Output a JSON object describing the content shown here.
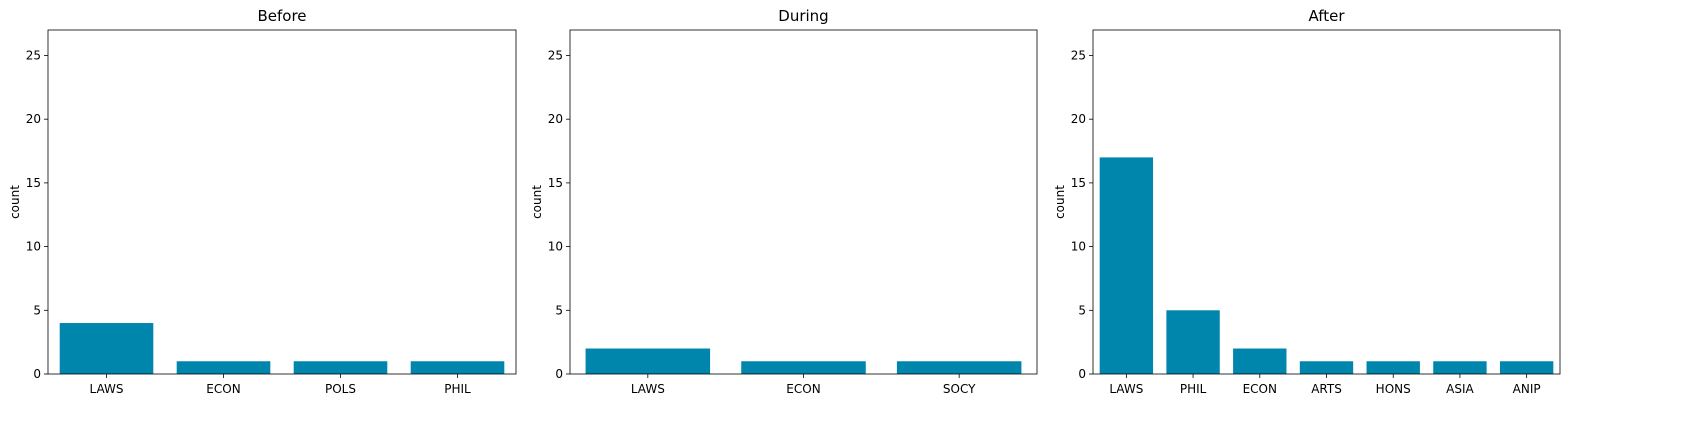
{
  "chart_data": [
    {
      "type": "bar",
      "title": "Before",
      "xlabel": "",
      "ylabel": "count",
      "categories": [
        "LAWS",
        "ECON",
        "POLS",
        "PHIL"
      ],
      "values": [
        4,
        1,
        1,
        1
      ],
      "ylim": [
        0,
        27
      ],
      "yticks": [
        0,
        5,
        10,
        15,
        20,
        25
      ],
      "grid": false,
      "bar_color": "#0085ad"
    },
    {
      "type": "bar",
      "title": "During",
      "xlabel": "",
      "ylabel": "count",
      "categories": [
        "LAWS",
        "ECON",
        "SOCY"
      ],
      "values": [
        2,
        1,
        1
      ],
      "ylim": [
        0,
        27
      ],
      "yticks": [
        0,
        5,
        10,
        15,
        20,
        25
      ],
      "grid": false,
      "bar_color": "#0085ad"
    },
    {
      "type": "bar",
      "title": "After",
      "xlabel": "",
      "ylabel": "count",
      "categories": [
        "LAWS",
        "PHIL",
        "ECON",
        "ARTS",
        "HONS",
        "ASIA",
        "ANIP"
      ],
      "values": [
        17,
        5,
        2,
        1,
        1,
        1,
        1
      ],
      "ylim": [
        0,
        27
      ],
      "yticks": [
        0,
        5,
        10,
        15,
        20,
        25
      ],
      "grid": false,
      "bar_color": "#0085ad"
    }
  ]
}
